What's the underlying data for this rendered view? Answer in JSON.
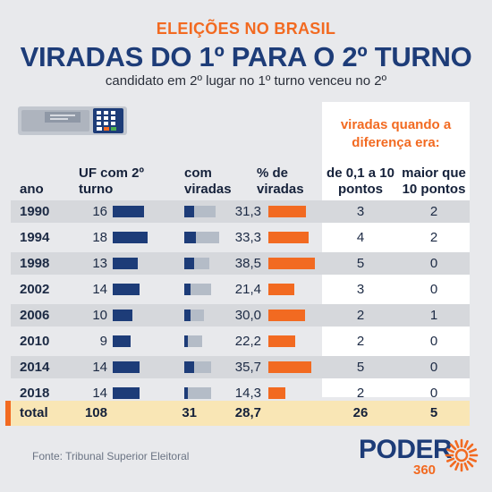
{
  "header": {
    "kicker": "ELEIÇÕES NO BRASIL",
    "title": "VIRADAS DO 1º PARA O 2º TURNO",
    "subtitle": "candidato em 2º lugar no 1º turno venceu no 2º"
  },
  "chart_data": {
    "type": "table",
    "group_header": "viradas quando a diferença era:",
    "columns": [
      "ano",
      "UF com 2º turno",
      "com viradas",
      "% de viradas",
      "de 0,1 a 10 pontos",
      "maior que 10 pontos"
    ],
    "rows": [
      {
        "ano": "1990",
        "uf": "16",
        "viradas": "5",
        "pct": "31,3",
        "ate10": "3",
        "mais10": "2"
      },
      {
        "ano": "1994",
        "uf": "18",
        "viradas": "6",
        "pct": "33,3",
        "ate10": "4",
        "mais10": "2"
      },
      {
        "ano": "1998",
        "uf": "13",
        "viradas": "5",
        "pct": "38,5",
        "ate10": "5",
        "mais10": "0"
      },
      {
        "ano": "2002",
        "uf": "14",
        "viradas": "3",
        "pct": "21,4",
        "ate10": "3",
        "mais10": "0"
      },
      {
        "ano": "2006",
        "uf": "10",
        "viradas": "3",
        "pct": "30,0",
        "ate10": "2",
        "mais10": "1"
      },
      {
        "ano": "2010",
        "uf": "9",
        "viradas": "2",
        "pct": "22,2",
        "ate10": "2",
        "mais10": "0"
      },
      {
        "ano": "2014",
        "uf": "14",
        "viradas": "5",
        "pct": "35,7",
        "ate10": "5",
        "mais10": "0"
      },
      {
        "ano": "2018",
        "uf": "14",
        "viradas": "2",
        "pct": "14,3",
        "ate10": "2",
        "mais10": "0"
      }
    ],
    "total": {
      "label": "total",
      "uf": "108",
      "viradas": "31",
      "pct": "28,7",
      "ate10": "26",
      "mais10": "5"
    },
    "colors": {
      "uf_bar": "#1d3c78",
      "viradas_bar": "#1d3c78",
      "viradas_track": "#b4bcc7",
      "pct_bar": "#f26a21",
      "total_band": "#f9e6b5"
    }
  },
  "footer": {
    "source": "Fonte: Tribunal Superior Eleitoral",
    "logo_word": "PODER",
    "logo_number": "360",
    "logo_icon": "sunburst-icon"
  },
  "illustration": {
    "icon": "ballot-box-icon"
  }
}
